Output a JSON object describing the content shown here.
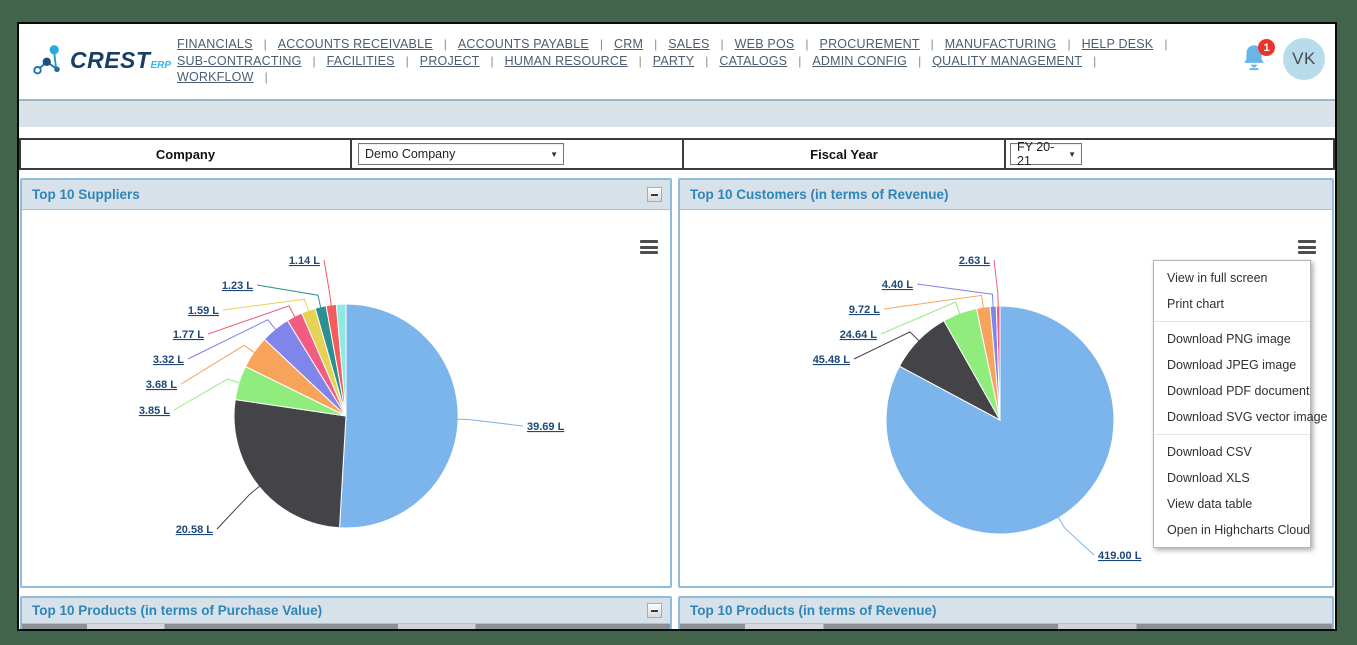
{
  "header": {
    "logo_text": "CREST",
    "logo_suffix": "ERP",
    "nav_rows": [
      [
        "FINANCIALS",
        "ACCOUNTS RECEIVABLE",
        "ACCOUNTS PAYABLE",
        "CRM",
        "SALES",
        "WEB POS",
        "PROCUREMENT",
        "MANUFACTURING",
        "HELP DESK"
      ],
      [
        "SUB-CONTRACTING",
        "FACILITIES",
        "PROJECT",
        "HUMAN RESOURCE",
        "PARTY",
        "CATALOGS",
        "ADMIN CONFIG",
        "QUALITY MANAGEMENT"
      ],
      [
        "WORKFLOW"
      ]
    ],
    "notification_count": "1",
    "avatar_initials": "VK"
  },
  "filters": {
    "company_label": "Company",
    "company_value": "Demo Company",
    "fiscal_year_label": "Fiscal Year",
    "fiscal_year_value": "FY 20-21"
  },
  "panels": {
    "suppliers_title": "Top 10 Suppliers",
    "customers_title": "Top 10 Customers (in terms of Revenue)",
    "products_purchase_title": "Top 10 Products (in terms of Purchase Value)",
    "products_revenue_title": "Top 10 Products (in terms of Revenue)"
  },
  "export_menu": {
    "groups": [
      [
        "View in full screen",
        "Print chart"
      ],
      [
        "Download PNG image",
        "Download JPEG image",
        "Download PDF document",
        "Download SVG vector image"
      ],
      [
        "Download CSV",
        "Download XLS",
        "View data table",
        "Open in Highcharts Cloud"
      ]
    ]
  },
  "icons": {
    "bell": "bell-icon",
    "chart_menu": "hamburger-icon",
    "collapse": "minus-icon",
    "dropdown": "chevron-down-icon"
  },
  "colors": {
    "frame_green": "#42644a",
    "panel_header_bg": "#d6e1e9",
    "panel_border": "#8fbdd9",
    "panel_title": "#2e86b8",
    "data_label": "#1d4877",
    "badge_red": "#e8342a",
    "highcharts_palette": [
      "#7cb5ec",
      "#434348",
      "#90ed7d",
      "#f7a35c",
      "#8085e9",
      "#f15c80",
      "#e4d354",
      "#2b908f",
      "#f45b5b",
      "#91e8e1"
    ]
  },
  "chart_data": [
    {
      "type": "pie",
      "title": "Top 10 Suppliers",
      "value_unit": "L",
      "data_labels": "outside with connector lines",
      "slices": [
        {
          "label": "39.69 L",
          "value": 39.69,
          "color": "#7cb5ec"
        },
        {
          "label": "20.58 L",
          "value": 20.58,
          "color": "#434348"
        },
        {
          "label": "3.85 L",
          "value": 3.85,
          "color": "#90ed7d"
        },
        {
          "label": "3.68 L",
          "value": 3.68,
          "color": "#f7a35c"
        },
        {
          "label": "3.32 L",
          "value": 3.32,
          "color": "#8085e9"
        },
        {
          "label": "1.77 L",
          "value": 1.77,
          "color": "#f15c80"
        },
        {
          "label": "1.59 L",
          "value": 1.59,
          "color": "#e4d354"
        },
        {
          "label": "1.23 L",
          "value": 1.23,
          "color": "#2b908f"
        },
        {
          "label": "1.14 L",
          "value": 1.14,
          "color": "#f45b5b"
        },
        {
          "label": "",
          "value": 1.08,
          "color": "#91e8e1"
        }
      ]
    },
    {
      "type": "pie",
      "title": "Top 10 Customers (in terms of Revenue)",
      "value_unit": "L",
      "data_labels": "outside with connector lines",
      "slices": [
        {
          "label": "419.00 L",
          "value": 419.0,
          "color": "#7cb5ec"
        },
        {
          "label": "45.48 L",
          "value": 45.48,
          "color": "#434348"
        },
        {
          "label": "24.64 L",
          "value": 24.64,
          "color": "#90ed7d"
        },
        {
          "label": "9.72 L",
          "value": 9.72,
          "color": "#f7a35c"
        },
        {
          "label": "4.40 L",
          "value": 4.4,
          "color": "#8085e9"
        },
        {
          "label": "2.63 L",
          "value": 2.63,
          "color": "#f15c80"
        }
      ]
    }
  ]
}
